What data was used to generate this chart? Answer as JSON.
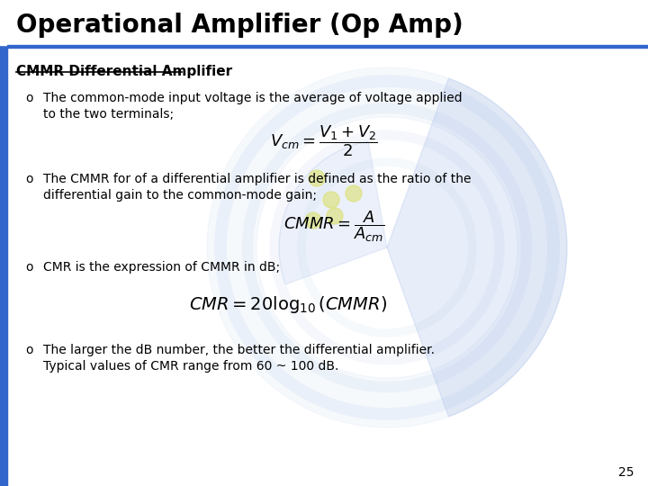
{
  "title": "Operational Amplifier (Op Amp)",
  "title_fontsize": 20,
  "title_color": "#000000",
  "title_bg_color": "#ffffff",
  "slide_bg_color": "#ffffff",
  "left_bar_color": "#3366cc",
  "top_bar_color": "#3366cc",
  "section_title": "CMMR Differential Amplifier",
  "section_title_fontsize": 11,
  "bullet_fontsize": 10,
  "bullets": [
    "The common-mode input voltage is the average of voltage applied\nto the two terminals;",
    "The CMMR for of a differential amplifier is defined as the ratio of the\ndifferential gain to the common-mode gain;",
    "CMR is the expression of CMMR in dB;",
    "The larger the dB number, the better the differential amplifier.\nTypical values of CMR range from 60 ~ 100 dB."
  ],
  "formula1": "$V_{cm} = \\dfrac{V_1 + V_2}{2}$",
  "formula2": "$CMMR = \\dfrac{A}{A_{cm}}$",
  "formula3": "$CMR = 20\\log_{10}(CMMR)$",
  "page_number": "25",
  "watermark_color": "#c8d8f0",
  "watermark_color2": "#a0b8e8",
  "dot_color": "#e8e840",
  "text_color": "#000000"
}
